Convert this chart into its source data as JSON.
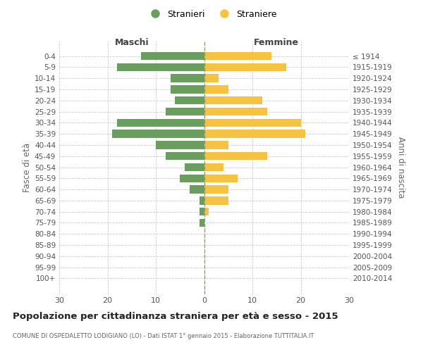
{
  "age_groups": [
    "0-4",
    "5-9",
    "10-14",
    "15-19",
    "20-24",
    "25-29",
    "30-34",
    "35-39",
    "40-44",
    "45-49",
    "50-54",
    "55-59",
    "60-64",
    "65-69",
    "70-74",
    "75-79",
    "80-84",
    "85-89",
    "90-94",
    "95-99",
    "100+"
  ],
  "birth_years": [
    "2010-2014",
    "2005-2009",
    "2000-2004",
    "1995-1999",
    "1990-1994",
    "1985-1989",
    "1980-1984",
    "1975-1979",
    "1970-1974",
    "1965-1969",
    "1960-1964",
    "1955-1959",
    "1950-1954",
    "1945-1949",
    "1940-1944",
    "1935-1939",
    "1930-1934",
    "1925-1929",
    "1920-1924",
    "1915-1919",
    "≤ 1914"
  ],
  "maschi": [
    13,
    18,
    7,
    7,
    6,
    8,
    18,
    19,
    10,
    8,
    4,
    5,
    3,
    1,
    1,
    1,
    0,
    0,
    0,
    0,
    0
  ],
  "femmine": [
    14,
    17,
    3,
    5,
    12,
    13,
    20,
    21,
    5,
    13,
    4,
    7,
    5,
    5,
    1,
    0,
    0,
    0,
    0,
    0,
    0
  ],
  "maschi_color": "#6a9e5f",
  "femmine_color": "#f5c242",
  "background_color": "#ffffff",
  "grid_color": "#cccccc",
  "title": "Popolazione per cittadinanza straniera per età e sesso - 2015",
  "subtitle": "COMUNE DI OSPEDALETTO LODIGIANO (LO) - Dati ISTAT 1° gennaio 2015 - Elaborazione TUTTITALIA.IT",
  "ylabel_left": "Fasce di età",
  "ylabel_right": "Anni di nascita",
  "xlabel_left": "Maschi",
  "xlabel_top_right": "Femmine",
  "legend_stranieri": "Stranieri",
  "legend_straniere": "Straniere",
  "xlim": 30
}
